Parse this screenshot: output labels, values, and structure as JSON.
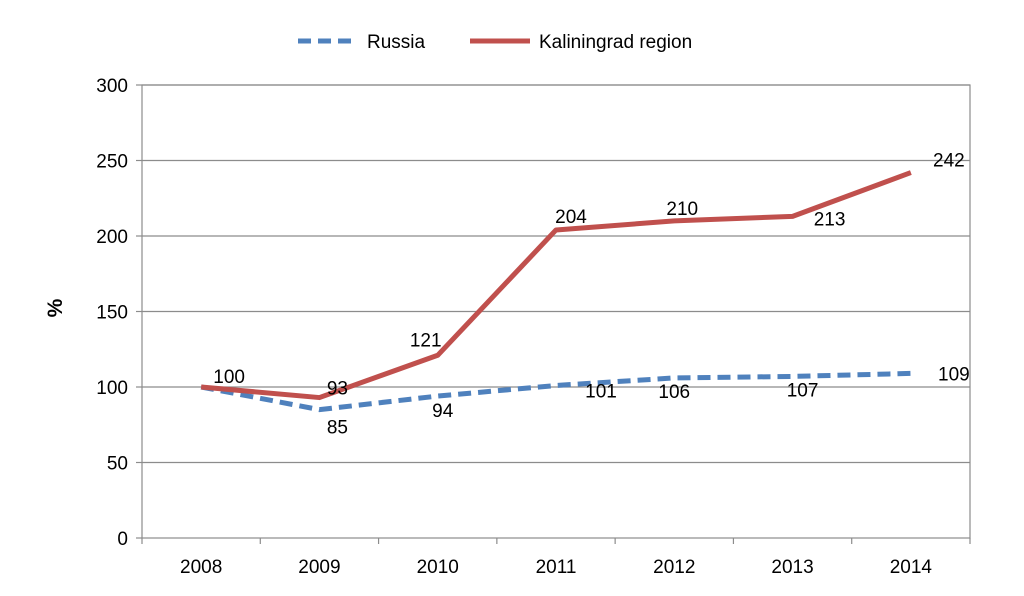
{
  "chart_data": {
    "type": "line",
    "title": "",
    "xlabel": "",
    "ylabel": "%",
    "ylim": [
      0,
      300
    ],
    "ytick_step": 50,
    "grid": true,
    "legend_position": "top-center",
    "categories": [
      "2008",
      "2009",
      "2010",
      "2011",
      "2012",
      "2013",
      "2014"
    ],
    "series": [
      {
        "name": "Russia",
        "style": "dashed",
        "color": "#4F81BD",
        "values": [
          100,
          85,
          94,
          101,
          106,
          107,
          109
        ],
        "labels": [
          "",
          "85",
          "94",
          "101",
          "106",
          "107",
          "109"
        ]
      },
      {
        "name": "Kaliningrad region",
        "style": "solid",
        "color": "#C0504D",
        "values": [
          100,
          93,
          121,
          204,
          210,
          213,
          242
        ],
        "labels": [
          "100",
          "93",
          "121",
          "204",
          "210",
          "213",
          "242"
        ]
      }
    ]
  }
}
